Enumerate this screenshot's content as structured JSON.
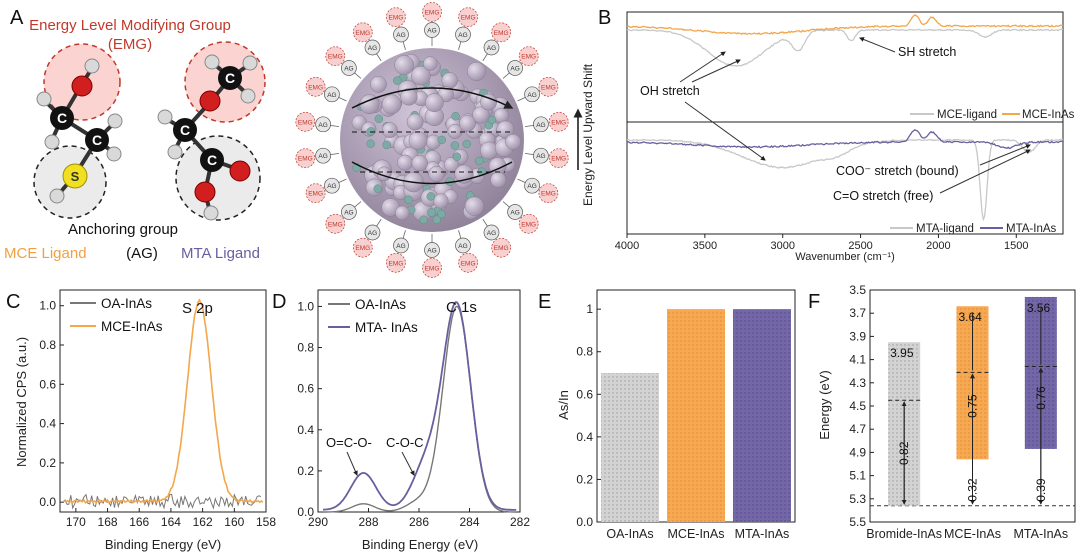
{
  "panel_labels": {
    "A": "A",
    "B": "B",
    "C": "C",
    "D": "D",
    "E": "E",
    "F": "F"
  },
  "colors": {
    "orange": "#f4a64a",
    "purple": "#6b5e9e",
    "gray": "#8a8a8a",
    "lightgray": "#c8c8c8",
    "red": "#c0392b",
    "emg_fill": "#f8d0d0",
    "ag_fill": "#e6e6e6"
  },
  "panel_a": {
    "emg_title_line1": "Energy Level Modifying Group",
    "emg_title_line2": "(EMG)",
    "anchoring_label": "Anchoring group",
    "ag_abbrev": "(AG)",
    "mce_label": "MCE Ligand",
    "mta_label": "MTA Ligand",
    "atom_c": "C",
    "atom_o": "O",
    "atom_s": "S",
    "emg_tag": "EMG",
    "ag_tag": "AG",
    "vertical_label": "Energy Level Upward Shift"
  },
  "chart_data": [
    {
      "panel": "B",
      "type": "line",
      "title": "",
      "xlabel": "Wavenumber (cm⁻¹)",
      "xlim": [
        4000,
        1200
      ],
      "xticks": [
        "4000",
        "3500",
        "3000",
        "2500",
        "2000",
        "1500"
      ],
      "legend_top": [
        "MCE-ligand",
        "MCE-InAs"
      ],
      "legend_bottom": [
        "MTA-ligand",
        "MTA-InAs"
      ],
      "annotations": [
        "SH stretch",
        "OH stretch",
        "COO⁻ stretch (bound)",
        "C=O stretch (free)"
      ]
    },
    {
      "panel": "C",
      "type": "line",
      "xlabel": "Binding Energy (eV)",
      "ylabel": "Normalized CPS (a.u.)",
      "xlim": [
        171,
        158
      ],
      "ylim": [
        -0.05,
        1.08
      ],
      "xticks": [
        "170",
        "168",
        "166",
        "164",
        "162",
        "160",
        "158"
      ],
      "yticks": [
        "0.0",
        "0.2",
        "0.4",
        "0.6",
        "0.8",
        "1.0"
      ],
      "series": [
        {
          "name": "OA-InAs",
          "peak_center": null,
          "peak_height": 0.0
        },
        {
          "name": "MCE-InAs",
          "peak_center": 162.2,
          "peak_height": 1.02
        }
      ],
      "annotation": "S 2p"
    },
    {
      "panel": "D",
      "type": "line",
      "xlabel": "Binding Energy (eV)",
      "xlim": [
        290,
        282
      ],
      "ylim": [
        0,
        1.08
      ],
      "xticks": [
        "290",
        "288",
        "286",
        "284",
        "282"
      ],
      "yticks": [
        "0.0",
        "0.2",
        "0.4",
        "0.6",
        "0.8",
        "1.0"
      ],
      "series": [
        {
          "name": "OA-InAs",
          "main_peak": 284.5,
          "main_height": 1.0
        },
        {
          "name": "MTA- InAs",
          "main_peak": 284.5,
          "main_height": 0.99,
          "shoulder_288": 0.18,
          "shoulder_286": 0.22
        }
      ],
      "annotations": [
        "C 1s",
        "O=C-O-",
        "C-O-C"
      ]
    },
    {
      "panel": "E",
      "type": "bar",
      "ylabel": "As/In",
      "categories": [
        "OA-InAs",
        "MCE-InAs",
        "MTA-InAs"
      ],
      "values": [
        0.7,
        1.0,
        1.0
      ],
      "ylim": [
        0.0,
        1.09
      ],
      "yticks": [
        "0.0",
        "0.2",
        "0.4",
        "0.6",
        "0.8",
        "1"
      ]
    },
    {
      "panel": "F",
      "type": "bar",
      "ylabel": "Energy (eV)",
      "categories": [
        "Bromide-InAs",
        "MCE-InAs",
        "MTA-InAs"
      ],
      "tops": [
        3.95,
        3.64,
        3.56
      ],
      "bottoms": [
        5.36,
        4.96,
        4.87
      ],
      "top_labels": [
        "3.95",
        "3.64",
        "3.56"
      ],
      "upper_gaps": [
        "0.82",
        "0.75",
        "0.76"
      ],
      "lower_gaps": [
        "",
        "0.32",
        "0.39"
      ],
      "fermi_levels": [
        4.45,
        4.21,
        4.16
      ],
      "reference_level": 5.36,
      "ylim": [
        3.5,
        5.5
      ],
      "yticks": [
        "3.5",
        "3.7",
        "3.9",
        "4.1",
        "4.3",
        "4.5",
        "4.7",
        "4.9",
        "5.1",
        "5.3",
        "5.5"
      ]
    }
  ]
}
